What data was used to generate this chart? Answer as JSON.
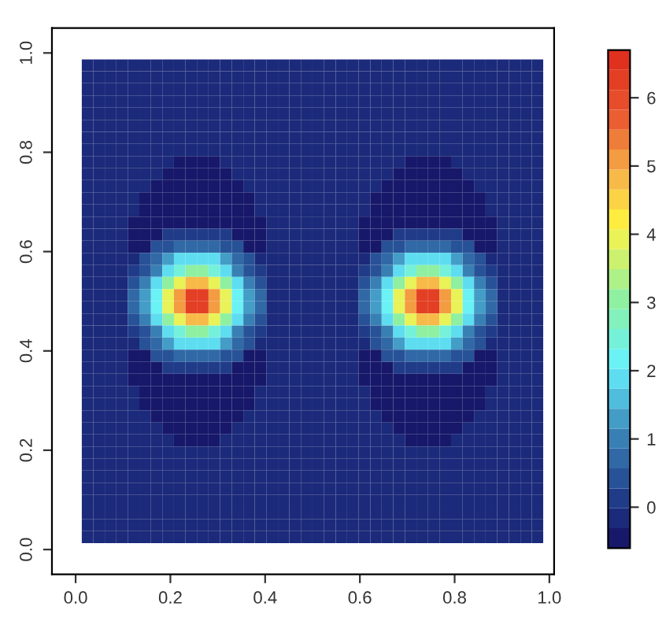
{
  "chart_data": {
    "type": "heatmap",
    "x": [
      0.025,
      0.049,
      0.074,
      0.098,
      0.122,
      0.147,
      0.171,
      0.195,
      0.22,
      0.244,
      0.268,
      0.293,
      0.317,
      0.342,
      0.366,
      0.39,
      0.415,
      0.439,
      0.463,
      0.488,
      0.512,
      0.537,
      0.561,
      0.585,
      0.61,
      0.634,
      0.658,
      0.683,
      0.707,
      0.732,
      0.756,
      0.78,
      0.805,
      0.829,
      0.853,
      0.878,
      0.902,
      0.927,
      0.951,
      0.975
    ],
    "y": [
      0.975,
      0.951,
      0.927,
      0.902,
      0.878,
      0.853,
      0.829,
      0.805,
      0.78,
      0.756,
      0.732,
      0.707,
      0.683,
      0.658,
      0.634,
      0.61,
      0.585,
      0.561,
      0.537,
      0.512,
      0.488,
      0.463,
      0.439,
      0.415,
      0.39,
      0.366,
      0.342,
      0.317,
      0.293,
      0.268,
      0.244,
      0.22,
      0.195,
      0.171,
      0.147,
      0.122,
      0.098,
      0.074,
      0.049,
      0.025
    ],
    "cells": [
      [
        -0.2,
        -0.2,
        -0.2,
        -0.2,
        -0.2,
        -0.2,
        -0.2,
        -0.2,
        -0.2,
        -0.2,
        -0.2,
        -0.2,
        -0.2,
        -0.2,
        -0.2,
        -0.2,
        -0.2,
        -0.2,
        -0.2,
        -0.2,
        -0.2,
        -0.2,
        -0.2,
        -0.2,
        -0.2,
        -0.2,
        -0.2,
        -0.2,
        -0.2,
        -0.2,
        -0.2,
        -0.2,
        -0.2,
        -0.2,
        -0.2,
        -0.2,
        -0.2,
        -0.2,
        -0.2,
        -0.2
      ],
      [
        -0.2,
        -0.2,
        -0.2,
        -0.2,
        -0.2,
        -0.2,
        -0.2,
        -0.2,
        -0.2,
        -0.2,
        -0.2,
        -0.2,
        -0.2,
        -0.2,
        -0.2,
        -0.2,
        -0.2,
        -0.2,
        -0.2,
        -0.2,
        -0.2,
        -0.2,
        -0.2,
        -0.2,
        -0.2,
        -0.2,
        -0.2,
        -0.2,
        -0.2,
        -0.2,
        -0.2,
        -0.2,
        -0.2,
        -0.2,
        -0.2,
        -0.2,
        -0.2,
        -0.2,
        -0.2,
        -0.2
      ],
      [
        -0.2,
        -0.2,
        -0.2,
        -0.2,
        -0.2,
        -0.2,
        -0.2,
        -0.2,
        -0.2,
        -0.2,
        -0.2,
        -0.2,
        -0.2,
        -0.2,
        -0.2,
        -0.2,
        -0.2,
        -0.2,
        -0.2,
        -0.2,
        -0.2,
        -0.2,
        -0.2,
        -0.2,
        -0.2,
        -0.2,
        -0.2,
        -0.2,
        -0.2,
        -0.2,
        -0.2,
        -0.2,
        -0.2,
        -0.2,
        -0.2,
        -0.2,
        -0.2,
        -0.2,
        -0.2,
        -0.2
      ],
      [
        -0.2,
        -0.2,
        -0.2,
        -0.2,
        -0.2,
        -0.2,
        -0.2,
        -0.2,
        -0.2,
        -0.2,
        -0.2,
        -0.2,
        -0.2,
        -0.2,
        -0.2,
        -0.2,
        -0.2,
        -0.2,
        -0.2,
        -0.2,
        -0.2,
        -0.2,
        -0.2,
        -0.2,
        -0.2,
        -0.2,
        -0.2,
        -0.2,
        -0.2,
        -0.2,
        -0.2,
        -0.2,
        -0.2,
        -0.2,
        -0.2,
        -0.2,
        -0.2,
        -0.2,
        -0.2,
        -0.2
      ],
      [
        -0.2,
        -0.2,
        -0.2,
        -0.2,
        -0.2,
        -0.2,
        -0.2,
        -0.2,
        -0.2,
        -0.2,
        -0.2,
        -0.2,
        -0.2,
        -0.2,
        -0.2,
        -0.2,
        -0.2,
        -0.2,
        -0.2,
        -0.2,
        -0.2,
        -0.2,
        -0.2,
        -0.2,
        -0.2,
        -0.2,
        -0.2,
        -0.2,
        -0.2,
        -0.2,
        -0.2,
        -0.2,
        -0.2,
        -0.2,
        -0.2,
        -0.2,
        -0.2,
        -0.2,
        -0.2,
        -0.2
      ],
      [
        -0.2,
        -0.2,
        -0.2,
        -0.2,
        -0.2,
        -0.2,
        -0.2,
        -0.2,
        -0.2,
        -0.2,
        -0.2,
        -0.2,
        -0.2,
        -0.2,
        -0.2,
        -0.2,
        -0.2,
        -0.2,
        -0.2,
        -0.2,
        -0.2,
        -0.2,
        -0.2,
        -0.2,
        -0.2,
        -0.2,
        -0.2,
        -0.2,
        -0.2,
        -0.2,
        -0.2,
        -0.2,
        -0.2,
        -0.2,
        -0.2,
        -0.2,
        -0.2,
        -0.2,
        -0.2,
        -0.2
      ],
      [
        -0.2,
        -0.2,
        -0.2,
        -0.2,
        -0.2,
        -0.2,
        -0.2,
        -0.2,
        -0.2,
        -0.2,
        -0.2,
        -0.2,
        -0.2,
        -0.2,
        -0.2,
        -0.2,
        -0.2,
        -0.2,
        -0.2,
        -0.2,
        -0.2,
        -0.2,
        -0.2,
        -0.2,
        -0.2,
        -0.2,
        -0.2,
        -0.2,
        -0.2,
        -0.2,
        -0.2,
        -0.2,
        -0.2,
        -0.2,
        -0.2,
        -0.2,
        -0.2,
        -0.2,
        -0.2,
        -0.2
      ],
      [
        -0.2,
        -0.2,
        -0.2,
        -0.2,
        -0.2,
        -0.2,
        -0.2,
        -0.2,
        -0.2,
        -0.2,
        -0.2,
        -0.2,
        -0.2,
        -0.2,
        -0.2,
        -0.2,
        -0.2,
        -0.2,
        -0.2,
        -0.2,
        -0.2,
        -0.2,
        -0.2,
        -0.2,
        -0.2,
        -0.2,
        -0.2,
        -0.2,
        -0.2,
        -0.2,
        -0.2,
        -0.2,
        -0.2,
        -0.2,
        -0.2,
        -0.2,
        -0.2,
        -0.2,
        -0.2,
        -0.2
      ],
      [
        -0.2,
        -0.2,
        -0.2,
        -0.2,
        -0.2,
        -0.2,
        -0.2,
        -0.2,
        -0.5,
        -0.5,
        -0.5,
        -0.5,
        -0.2,
        -0.2,
        -0.2,
        -0.2,
        -0.2,
        -0.2,
        -0.2,
        -0.2,
        -0.2,
        -0.2,
        -0.2,
        -0.2,
        -0.2,
        -0.2,
        -0.2,
        -0.2,
        -0.5,
        -0.5,
        -0.5,
        -0.5,
        -0.2,
        -0.2,
        -0.2,
        -0.2,
        -0.2,
        -0.2,
        -0.2,
        -0.2
      ],
      [
        -0.2,
        -0.2,
        -0.2,
        -0.2,
        -0.2,
        -0.2,
        -0.2,
        -0.5,
        -0.5,
        -0.5,
        -0.5,
        -0.5,
        -0.5,
        -0.2,
        -0.2,
        -0.2,
        -0.2,
        -0.2,
        -0.2,
        -0.2,
        -0.2,
        -0.2,
        -0.2,
        -0.2,
        -0.2,
        -0.2,
        -0.2,
        -0.5,
        -0.5,
        -0.5,
        -0.5,
        -0.5,
        -0.5,
        -0.2,
        -0.2,
        -0.2,
        -0.2,
        -0.2,
        -0.2,
        -0.2
      ],
      [
        -0.2,
        -0.2,
        -0.2,
        -0.2,
        -0.2,
        -0.2,
        -0.5,
        -0.5,
        -0.5,
        -0.5,
        -0.5,
        -0.5,
        -0.5,
        -0.5,
        -0.2,
        -0.2,
        -0.2,
        -0.2,
        -0.2,
        -0.2,
        -0.2,
        -0.2,
        -0.2,
        -0.2,
        -0.2,
        -0.2,
        -0.5,
        -0.5,
        -0.5,
        -0.5,
        -0.5,
        -0.5,
        -0.5,
        -0.5,
        -0.2,
        -0.2,
        -0.2,
        -0.2,
        -0.2,
        -0.2
      ],
      [
        -0.2,
        -0.2,
        -0.2,
        -0.2,
        -0.2,
        -0.5,
        -0.5,
        -0.5,
        -0.5,
        -0.5,
        -0.5,
        -0.5,
        -0.5,
        -0.5,
        -0.5,
        -0.2,
        -0.2,
        -0.2,
        -0.2,
        -0.2,
        -0.2,
        -0.2,
        -0.2,
        -0.2,
        -0.2,
        -0.5,
        -0.5,
        -0.5,
        -0.5,
        -0.5,
        -0.5,
        -0.5,
        -0.5,
        -0.5,
        -0.5,
        -0.2,
        -0.2,
        -0.2,
        -0.2,
        -0.2
      ],
      [
        -0.2,
        -0.2,
        -0.2,
        -0.2,
        -0.2,
        -0.5,
        -0.5,
        -0.5,
        -0.5,
        -0.5,
        -0.5,
        -0.5,
        -0.5,
        -0.5,
        -0.5,
        -0.2,
        -0.2,
        -0.2,
        -0.2,
        -0.2,
        -0.2,
        -0.2,
        -0.2,
        -0.2,
        -0.2,
        -0.5,
        -0.5,
        -0.5,
        -0.5,
        -0.5,
        -0.5,
        -0.5,
        -0.5,
        -0.5,
        -0.5,
        -0.2,
        -0.2,
        -0.2,
        -0.2,
        -0.2
      ],
      [
        -0.2,
        -0.2,
        -0.2,
        -0.2,
        -0.5,
        -0.5,
        -0.5,
        -0.5,
        -0.5,
        -0.5,
        -0.5,
        -0.5,
        -0.5,
        -0.5,
        -0.5,
        -0.5,
        -0.2,
        -0.2,
        -0.2,
        -0.2,
        -0.2,
        -0.2,
        -0.2,
        -0.2,
        -0.5,
        -0.5,
        -0.5,
        -0.5,
        -0.5,
        -0.5,
        -0.5,
        -0.5,
        -0.5,
        -0.5,
        -0.5,
        -0.5,
        -0.2,
        -0.2,
        -0.2,
        -0.2
      ],
      [
        -0.2,
        -0.2,
        -0.2,
        -0.2,
        -0.5,
        -0.5,
        -0.5,
        0.1,
        0.1,
        0.1,
        0.1,
        0.1,
        0.1,
        -0.5,
        -0.5,
        -0.5,
        -0.2,
        -0.2,
        -0.2,
        -0.2,
        -0.2,
        -0.2,
        -0.2,
        -0.2,
        -0.5,
        -0.5,
        -0.5,
        0.1,
        0.1,
        0.1,
        0.1,
        0.1,
        0.1,
        -0.5,
        -0.5,
        -0.5,
        -0.2,
        -0.2,
        -0.2,
        -0.2
      ],
      [
        -0.2,
        -0.2,
        -0.2,
        -0.2,
        -0.5,
        -0.5,
        0.3,
        0.3,
        0.7,
        0.7,
        0.7,
        0.7,
        0.3,
        0.3,
        -0.5,
        -0.5,
        -0.2,
        -0.2,
        -0.2,
        -0.2,
        -0.2,
        -0.2,
        -0.2,
        -0.2,
        -0.5,
        -0.5,
        0.3,
        0.3,
        0.7,
        0.7,
        0.7,
        0.7,
        0.3,
        0.3,
        -0.5,
        -0.5,
        -0.2,
        -0.2,
        -0.2,
        -0.2
      ],
      [
        -0.2,
        -0.2,
        -0.2,
        -0.2,
        -0.2,
        0.3,
        0.6,
        1.2,
        1.8,
        2.0,
        2.0,
        1.8,
        1.2,
        0.6,
        0.3,
        -0.2,
        -0.2,
        -0.2,
        -0.2,
        -0.2,
        -0.2,
        -0.2,
        -0.2,
        -0.2,
        -0.2,
        0.3,
        0.6,
        1.2,
        1.8,
        2.0,
        2.0,
        1.8,
        1.2,
        0.6,
        0.3,
        -0.2,
        -0.2,
        -0.2,
        -0.2,
        -0.2
      ],
      [
        -0.2,
        -0.2,
        -0.2,
        -0.2,
        0.1,
        0.5,
        1.0,
        1.8,
        2.6,
        3.0,
        3.0,
        2.6,
        1.8,
        1.0,
        0.5,
        0.1,
        -0.2,
        -0.2,
        -0.2,
        -0.2,
        -0.2,
        -0.2,
        -0.2,
        -0.2,
        0.1,
        0.5,
        1.0,
        1.8,
        2.6,
        3.0,
        3.0,
        2.6,
        1.8,
        1.0,
        0.5,
        0.1,
        -0.2,
        -0.2,
        -0.2,
        -0.2
      ],
      [
        -0.2,
        -0.2,
        -0.2,
        -0.2,
        0.5,
        0.9,
        1.8,
        3.0,
        4.0,
        4.8,
        4.8,
        4.0,
        3.0,
        1.8,
        0.9,
        0.5,
        -0.2,
        -0.2,
        -0.2,
        -0.2,
        -0.2,
        -0.2,
        -0.2,
        -0.2,
        0.5,
        0.9,
        1.8,
        3.0,
        4.0,
        4.8,
        4.8,
        4.0,
        3.0,
        1.8,
        0.9,
        0.5,
        -0.2,
        -0.2,
        -0.2,
        -0.2
      ],
      [
        -0.2,
        -0.2,
        -0.2,
        -0.2,
        0.7,
        1.2,
        2.2,
        3.8,
        5.2,
        6.3,
        6.3,
        5.2,
        3.8,
        2.2,
        1.2,
        0.7,
        -0.2,
        -0.2,
        -0.2,
        -0.2,
        -0.2,
        -0.2,
        -0.2,
        -0.2,
        0.7,
        1.2,
        2.2,
        3.8,
        5.2,
        6.3,
        6.3,
        5.2,
        3.8,
        2.2,
        1.2,
        0.7,
        -0.2,
        -0.2,
        -0.2,
        -0.2
      ],
      [
        -0.2,
        -0.2,
        -0.2,
        -0.2,
        0.7,
        1.2,
        2.2,
        3.8,
        5.2,
        6.3,
        6.3,
        5.2,
        3.8,
        2.2,
        1.2,
        0.7,
        -0.2,
        -0.2,
        -0.2,
        -0.2,
        -0.2,
        -0.2,
        -0.2,
        -0.2,
        0.7,
        1.2,
        2.2,
        3.8,
        5.2,
        6.3,
        6.3,
        5.2,
        3.8,
        2.2,
        1.2,
        0.7,
        -0.2,
        -0.2,
        -0.2,
        -0.2
      ],
      [
        -0.2,
        -0.2,
        -0.2,
        -0.2,
        0.5,
        0.9,
        1.8,
        3.0,
        4.0,
        4.8,
        4.8,
        4.0,
        3.0,
        1.8,
        0.9,
        0.5,
        -0.2,
        -0.2,
        -0.2,
        -0.2,
        -0.2,
        -0.2,
        -0.2,
        -0.2,
        0.5,
        0.9,
        1.8,
        3.0,
        4.0,
        4.8,
        4.8,
        4.0,
        3.0,
        1.8,
        0.9,
        0.5,
        -0.2,
        -0.2,
        -0.2,
        -0.2
      ],
      [
        -0.2,
        -0.2,
        -0.2,
        -0.2,
        0.1,
        0.5,
        1.0,
        1.8,
        2.6,
        3.0,
        3.0,
        2.6,
        1.8,
        1.0,
        0.5,
        0.1,
        -0.2,
        -0.2,
        -0.2,
        -0.2,
        -0.2,
        -0.2,
        -0.2,
        -0.2,
        0.1,
        0.5,
        1.0,
        1.8,
        2.6,
        3.0,
        3.0,
        2.6,
        1.8,
        1.0,
        0.5,
        0.1,
        -0.2,
        -0.2,
        -0.2,
        -0.2
      ],
      [
        -0.2,
        -0.2,
        -0.2,
        -0.2,
        -0.2,
        0.3,
        0.6,
        1.2,
        1.8,
        2.0,
        2.0,
        1.8,
        1.2,
        0.6,
        0.3,
        -0.2,
        -0.2,
        -0.2,
        -0.2,
        -0.2,
        -0.2,
        -0.2,
        -0.2,
        -0.2,
        -0.2,
        0.3,
        0.6,
        1.2,
        1.8,
        2.0,
        2.0,
        1.8,
        1.2,
        0.6,
        0.3,
        -0.2,
        -0.2,
        -0.2,
        -0.2,
        -0.2
      ],
      [
        -0.2,
        -0.2,
        -0.2,
        -0.2,
        -0.5,
        -0.5,
        0.3,
        0.3,
        0.7,
        0.7,
        0.7,
        0.7,
        0.3,
        0.3,
        -0.5,
        -0.5,
        -0.2,
        -0.2,
        -0.2,
        -0.2,
        -0.2,
        -0.2,
        -0.2,
        -0.2,
        -0.5,
        -0.5,
        0.3,
        0.3,
        0.7,
        0.7,
        0.7,
        0.7,
        0.3,
        0.3,
        -0.5,
        -0.5,
        -0.2,
        -0.2,
        -0.2,
        -0.2
      ],
      [
        -0.2,
        -0.2,
        -0.2,
        -0.2,
        -0.5,
        -0.5,
        -0.5,
        0.1,
        0.1,
        0.1,
        0.1,
        0.1,
        0.1,
        -0.5,
        -0.5,
        -0.5,
        -0.2,
        -0.2,
        -0.2,
        -0.2,
        -0.2,
        -0.2,
        -0.2,
        -0.2,
        -0.5,
        -0.5,
        -0.5,
        0.1,
        0.1,
        0.1,
        0.1,
        0.1,
        0.1,
        -0.5,
        -0.5,
        -0.5,
        -0.2,
        -0.2,
        -0.2,
        -0.2
      ],
      [
        -0.2,
        -0.2,
        -0.2,
        -0.2,
        -0.5,
        -0.5,
        -0.5,
        -0.5,
        -0.5,
        -0.5,
        -0.5,
        -0.5,
        -0.5,
        -0.5,
        -0.5,
        -0.5,
        -0.2,
        -0.2,
        -0.2,
        -0.2,
        -0.2,
        -0.2,
        -0.2,
        -0.2,
        -0.5,
        -0.5,
        -0.5,
        -0.5,
        -0.5,
        -0.5,
        -0.5,
        -0.5,
        -0.5,
        -0.5,
        -0.5,
        -0.5,
        -0.2,
        -0.2,
        -0.2,
        -0.2
      ],
      [
        -0.2,
        -0.2,
        -0.2,
        -0.2,
        -0.2,
        -0.5,
        -0.5,
        -0.5,
        -0.5,
        -0.5,
        -0.5,
        -0.5,
        -0.5,
        -0.5,
        -0.5,
        -0.2,
        -0.2,
        -0.2,
        -0.2,
        -0.2,
        -0.2,
        -0.2,
        -0.2,
        -0.2,
        -0.2,
        -0.5,
        -0.5,
        -0.5,
        -0.5,
        -0.5,
        -0.5,
        -0.5,
        -0.5,
        -0.5,
        -0.5,
        -0.2,
        -0.2,
        -0.2,
        -0.2,
        -0.2
      ],
      [
        -0.2,
        -0.2,
        -0.2,
        -0.2,
        -0.2,
        -0.5,
        -0.5,
        -0.5,
        -0.5,
        -0.5,
        -0.5,
        -0.5,
        -0.5,
        -0.5,
        -0.5,
        -0.2,
        -0.2,
        -0.2,
        -0.2,
        -0.2,
        -0.2,
        -0.2,
        -0.2,
        -0.2,
        -0.2,
        -0.5,
        -0.5,
        -0.5,
        -0.5,
        -0.5,
        -0.5,
        -0.5,
        -0.5,
        -0.5,
        -0.5,
        -0.2,
        -0.2,
        -0.2,
        -0.2,
        -0.2
      ],
      [
        -0.2,
        -0.2,
        -0.2,
        -0.2,
        -0.2,
        -0.2,
        -0.5,
        -0.5,
        -0.5,
        -0.5,
        -0.5,
        -0.5,
        -0.5,
        -0.5,
        -0.2,
        -0.2,
        -0.2,
        -0.2,
        -0.2,
        -0.2,
        -0.2,
        -0.2,
        -0.2,
        -0.2,
        -0.2,
        -0.2,
        -0.5,
        -0.5,
        -0.5,
        -0.5,
        -0.5,
        -0.5,
        -0.5,
        -0.5,
        -0.2,
        -0.2,
        -0.2,
        -0.2,
        -0.2,
        -0.2
      ],
      [
        -0.2,
        -0.2,
        -0.2,
        -0.2,
        -0.2,
        -0.2,
        -0.2,
        -0.5,
        -0.5,
        -0.5,
        -0.5,
        -0.5,
        -0.5,
        -0.2,
        -0.2,
        -0.2,
        -0.2,
        -0.2,
        -0.2,
        -0.2,
        -0.2,
        -0.2,
        -0.2,
        -0.2,
        -0.2,
        -0.2,
        -0.2,
        -0.5,
        -0.5,
        -0.5,
        -0.5,
        -0.5,
        -0.5,
        -0.2,
        -0.2,
        -0.2,
        -0.2,
        -0.2,
        -0.2,
        -0.2
      ],
      [
        -0.2,
        -0.2,
        -0.2,
        -0.2,
        -0.2,
        -0.2,
        -0.2,
        -0.2,
        -0.5,
        -0.5,
        -0.5,
        -0.5,
        -0.2,
        -0.2,
        -0.2,
        -0.2,
        -0.2,
        -0.2,
        -0.2,
        -0.2,
        -0.2,
        -0.2,
        -0.2,
        -0.2,
        -0.2,
        -0.2,
        -0.2,
        -0.2,
        -0.5,
        -0.5,
        -0.5,
        -0.5,
        -0.2,
        -0.2,
        -0.2,
        -0.2,
        -0.2,
        -0.2,
        -0.2,
        -0.2
      ],
      [
        -0.2,
        -0.2,
        -0.2,
        -0.2,
        -0.2,
        -0.2,
        -0.2,
        -0.2,
        -0.2,
        -0.2,
        -0.2,
        -0.2,
        -0.2,
        -0.2,
        -0.2,
        -0.2,
        -0.2,
        -0.2,
        -0.2,
        -0.2,
        -0.2,
        -0.2,
        -0.2,
        -0.2,
        -0.2,
        -0.2,
        -0.2,
        -0.2,
        -0.2,
        -0.2,
        -0.2,
        -0.2,
        -0.2,
        -0.2,
        -0.2,
        -0.2,
        -0.2,
        -0.2,
        -0.2,
        -0.2
      ],
      [
        -0.2,
        -0.2,
        -0.2,
        -0.2,
        -0.2,
        -0.2,
        -0.2,
        -0.2,
        -0.2,
        -0.2,
        -0.2,
        -0.2,
        -0.2,
        -0.2,
        -0.2,
        -0.2,
        -0.2,
        -0.2,
        -0.2,
        -0.2,
        -0.2,
        -0.2,
        -0.2,
        -0.2,
        -0.2,
        -0.2,
        -0.2,
        -0.2,
        -0.2,
        -0.2,
        -0.2,
        -0.2,
        -0.2,
        -0.2,
        -0.2,
        -0.2,
        -0.2,
        -0.2,
        -0.2,
        -0.2
      ],
      [
        -0.2,
        -0.2,
        -0.2,
        -0.2,
        -0.2,
        -0.2,
        -0.2,
        -0.2,
        -0.2,
        -0.2,
        -0.2,
        -0.2,
        -0.2,
        -0.2,
        -0.2,
        -0.2,
        -0.2,
        -0.2,
        -0.2,
        -0.2,
        -0.2,
        -0.2,
        -0.2,
        -0.2,
        -0.2,
        -0.2,
        -0.2,
        -0.2,
        -0.2,
        -0.2,
        -0.2,
        -0.2,
        -0.2,
        -0.2,
        -0.2,
        -0.2,
        -0.2,
        -0.2,
        -0.2,
        -0.2
      ],
      [
        -0.2,
        -0.2,
        -0.2,
        -0.2,
        -0.2,
        -0.2,
        -0.2,
        -0.2,
        -0.2,
        -0.2,
        -0.2,
        -0.2,
        -0.2,
        -0.2,
        -0.2,
        -0.2,
        -0.2,
        -0.2,
        -0.2,
        -0.2,
        -0.2,
        -0.2,
        -0.2,
        -0.2,
        -0.2,
        -0.2,
        -0.2,
        -0.2,
        -0.2,
        -0.2,
        -0.2,
        -0.2,
        -0.2,
        -0.2,
        -0.2,
        -0.2,
        -0.2,
        -0.2,
        -0.2,
        -0.2
      ],
      [
        -0.2,
        -0.2,
        -0.2,
        -0.2,
        -0.2,
        -0.2,
        -0.2,
        -0.2,
        -0.2,
        -0.2,
        -0.2,
        -0.2,
        -0.2,
        -0.2,
        -0.2,
        -0.2,
        -0.2,
        -0.2,
        -0.2,
        -0.2,
        -0.2,
        -0.2,
        -0.2,
        -0.2,
        -0.2,
        -0.2,
        -0.2,
        -0.2,
        -0.2,
        -0.2,
        -0.2,
        -0.2,
        -0.2,
        -0.2,
        -0.2,
        -0.2,
        -0.2,
        -0.2,
        -0.2,
        -0.2
      ],
      [
        -0.2,
        -0.2,
        -0.2,
        -0.2,
        -0.2,
        -0.2,
        -0.2,
        -0.2,
        -0.2,
        -0.2,
        -0.2,
        -0.2,
        -0.2,
        -0.2,
        -0.2,
        -0.2,
        -0.2,
        -0.2,
        -0.2,
        -0.2,
        -0.2,
        -0.2,
        -0.2,
        -0.2,
        -0.2,
        -0.2,
        -0.2,
        -0.2,
        -0.2,
        -0.2,
        -0.2,
        -0.2,
        -0.2,
        -0.2,
        -0.2,
        -0.2,
        -0.2,
        -0.2,
        -0.2,
        -0.2
      ],
      [
        -0.2,
        -0.2,
        -0.2,
        -0.2,
        -0.2,
        -0.2,
        -0.2,
        -0.2,
        -0.2,
        -0.2,
        -0.2,
        -0.2,
        -0.2,
        -0.2,
        -0.2,
        -0.2,
        -0.2,
        -0.2,
        -0.2,
        -0.2,
        -0.2,
        -0.2,
        -0.2,
        -0.2,
        -0.2,
        -0.2,
        -0.2,
        -0.2,
        -0.2,
        -0.2,
        -0.2,
        -0.2,
        -0.2,
        -0.2,
        -0.2,
        -0.2,
        -0.2,
        -0.2,
        -0.2,
        -0.2
      ],
      [
        -0.2,
        -0.2,
        -0.2,
        -0.2,
        -0.2,
        -0.2,
        -0.2,
        -0.2,
        -0.2,
        -0.2,
        -0.2,
        -0.2,
        -0.2,
        -0.2,
        -0.2,
        -0.2,
        -0.2,
        -0.2,
        -0.2,
        -0.2,
        -0.2,
        -0.2,
        -0.2,
        -0.2,
        -0.2,
        -0.2,
        -0.2,
        -0.2,
        -0.2,
        -0.2,
        -0.2,
        -0.2,
        -0.2,
        -0.2,
        -0.2,
        -0.2,
        -0.2,
        -0.2,
        -0.2,
        -0.2
      ]
    ],
    "xlim": [
      -0.05,
      1.01
    ],
    "ylim": [
      -0.05,
      1.05
    ],
    "xticks": [
      {
        "value": 0,
        "label": "0.0"
      },
      0.2,
      0.4,
      0.6,
      0.8,
      {
        "value": 1,
        "label": "1.0"
      }
    ],
    "yticks": [
      {
        "value": 0,
        "label": "0.0"
      },
      0.2,
      0.4,
      0.6,
      0.8,
      {
        "value": 1,
        "label": "1.0"
      }
    ],
    "clim": [
      -0.6,
      6.7
    ],
    "cticks": [
      0,
      1,
      2,
      3,
      4,
      5,
      6
    ],
    "grid": false
  }
}
